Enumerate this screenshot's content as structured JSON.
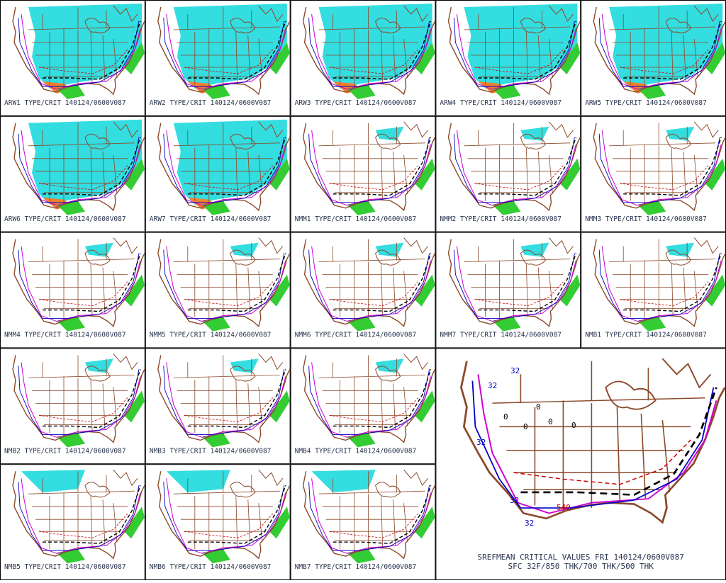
{
  "panels": [
    {
      "label": "ARW1 TYPE/CRIT 140124/0600V087"
    },
    {
      "label": "ARW2 TYPE/CRIT 140124/0600V087"
    },
    {
      "label": "ARW3 TYPE/CRIT 140124/0600V087"
    },
    {
      "label": "ARW4 TYPE/CRIT 140124/0600V087"
    },
    {
      "label": "ARW5 TYPE/CRIT 140124/0600V087"
    },
    {
      "label": "ARW6 TYPE/CRIT 140124/0600V087"
    },
    {
      "label": "ARW7 TYPE/CRIT 140124/0600V087"
    },
    {
      "label": "NMM1 TYPE/CRIT 140124/0600V087"
    },
    {
      "label": "NMM2 TYPE/CRIT 140124/0600V087"
    },
    {
      "label": "NMM3 TYPE/CRIT 140124/0600V087"
    },
    {
      "label": "NMM4 TYPE/CRIT 140124/0600V087"
    },
    {
      "label": "NMM5 TYPE/CRIT 140124/0600V087"
    },
    {
      "label": "NMM6 TYPE/CRIT 140124/0600V087"
    },
    {
      "label": "NMM7 TYPE/CRIT 140124/0600V087"
    },
    {
      "label": "NMB1 TYPE/CRIT 140124/0600V087"
    },
    {
      "label": "NMB2 TYPE/CRIT 140124/0600V087"
    },
    {
      "label": "NMB3 TYPE/CRIT 140124/0600V087"
    },
    {
      "label": "NMB4 TYPE/CRIT 140124/0600V087"
    },
    {
      "label": "NMB5 TYPE/CRIT 140124/0600V087"
    },
    {
      "label": "NMB6 TYPE/CRIT 140124/0600V087"
    },
    {
      "label": "NMB7 TYPE/CRIT 140124/0600V087"
    }
  ],
  "main_panel": {
    "caption_line1": "SREFMEAN CRITICAL VALUES FRI 140124/0600V087",
    "caption_line2": "SFC 32F/850 THK/700 THK/500 THK",
    "contour_labels": [
      "32",
      "32",
      "32",
      "32",
      "32",
      "540",
      "0",
      "0",
      "0",
      "0",
      "0"
    ]
  }
}
